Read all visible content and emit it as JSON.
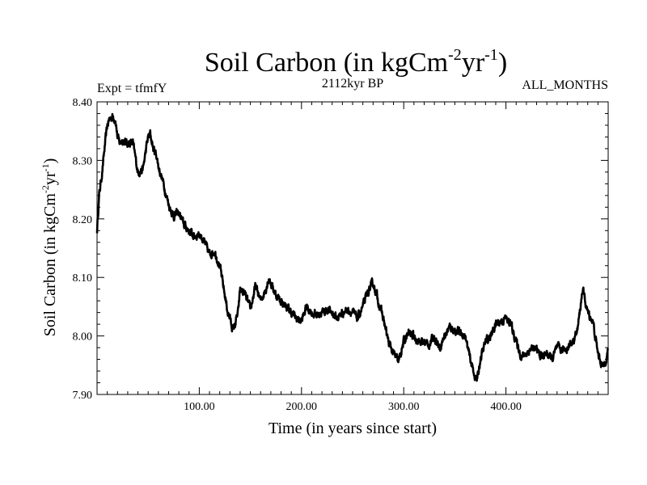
{
  "chart_data": {
    "type": "line",
    "title_main": "Soil Carbon (in kgCm",
    "title_exp1": "-2",
    "title_mid": "yr",
    "title_exp2": "-1",
    "title_end": ")",
    "expt": "Expt = tfmfY",
    "subtitle": "2112kyr BP",
    "months": "ALL_MONTHS",
    "xlabel": "Time (in years since start)",
    "ylabel_main": "Soil Carbon (in kgCm",
    "ylabel_exp1": "-2",
    "ylabel_mid": "yr",
    "ylabel_exp2": "-1",
    "ylabel_end": ")",
    "xlim": [
      0,
      500
    ],
    "ylim": [
      7.9,
      8.4
    ],
    "xticks": [
      100,
      200,
      300,
      400
    ],
    "xtick_labels": [
      "100.00",
      "200.00",
      "300.00",
      "400.00"
    ],
    "yticks": [
      7.9,
      8.0,
      8.1,
      8.2,
      8.3,
      8.4
    ],
    "ytick_labels": [
      "7.90",
      "8.00",
      "8.10",
      "8.20",
      "8.30",
      "8.40"
    ],
    "line_color": "#000000",
    "series": [
      {
        "x": [
          0,
          2,
          5,
          8,
          10,
          12,
          15,
          18,
          20,
          22,
          25,
          28,
          30,
          35,
          40,
          45,
          48,
          50,
          52,
          55,
          58,
          60,
          65,
          70,
          75,
          80,
          85,
          90,
          95,
          100,
          105,
          110,
          115,
          120,
          125,
          128,
          130,
          133,
          135,
          138,
          140,
          145,
          150,
          155,
          160,
          165,
          168,
          170,
          175,
          180,
          185,
          190,
          195,
          200,
          205,
          210,
          215,
          220,
          225,
          230,
          235,
          240,
          245,
          250,
          255,
          260,
          265,
          270,
          273,
          275,
          280,
          285,
          290,
          295,
          300,
          305,
          310,
          315,
          320,
          325,
          330,
          335,
          340,
          345,
          350,
          355,
          360,
          365,
          370,
          372,
          375,
          380,
          385,
          390,
          395,
          400,
          405,
          410,
          415,
          420,
          425,
          430,
          435,
          440,
          445,
          450,
          455,
          460,
          465,
          470,
          475,
          480,
          485,
          490,
          495,
          500
        ],
        "y": [
          8.18,
          8.24,
          8.28,
          8.33,
          8.36,
          8.37,
          8.375,
          8.37,
          8.34,
          8.33,
          8.335,
          8.33,
          8.33,
          8.33,
          8.28,
          8.285,
          8.32,
          8.34,
          8.345,
          8.32,
          8.31,
          8.29,
          8.26,
          8.225,
          8.205,
          8.21,
          8.19,
          8.18,
          8.17,
          8.175,
          8.16,
          8.14,
          8.145,
          8.12,
          8.07,
          8.04,
          8.03,
          8.01,
          8.02,
          8.04,
          8.08,
          8.07,
          8.045,
          8.085,
          8.06,
          8.08,
          8.1,
          8.09,
          8.07,
          8.06,
          8.05,
          8.04,
          8.03,
          8.025,
          8.05,
          8.04,
          8.035,
          8.04,
          8.045,
          8.04,
          8.03,
          8.04,
          8.045,
          8.04,
          8.03,
          8.05,
          8.075,
          8.09,
          8.075,
          8.06,
          8.03,
          7.99,
          7.97,
          7.955,
          7.99,
          8.005,
          8.0,
          7.99,
          7.99,
          7.985,
          8.0,
          7.98,
          8.0,
          8.015,
          8.01,
          8.005,
          8.0,
          7.96,
          7.93,
          7.925,
          7.96,
          7.99,
          8.0,
          8.02,
          8.025,
          8.03,
          8.02,
          7.99,
          7.965,
          7.97,
          7.98,
          7.975,
          7.965,
          7.97,
          7.96,
          7.98,
          7.975,
          7.98,
          7.99,
          8.01,
          8.08,
          8.04,
          8.025,
          7.97,
          7.945,
          7.975
        ]
      }
    ]
  }
}
